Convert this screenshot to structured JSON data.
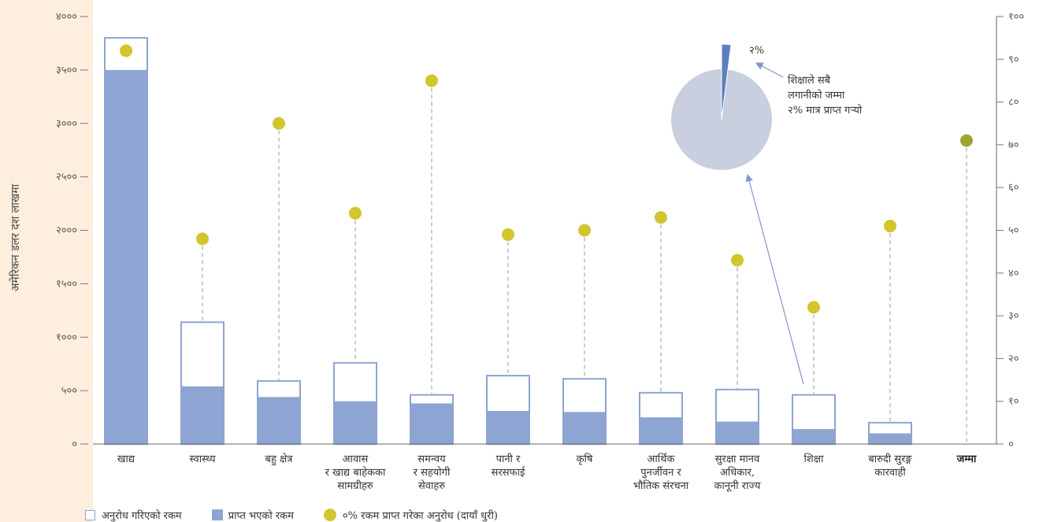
{
  "chart_data": {
    "type": "bar",
    "ylabel": "अमेरिकन डलर दश लाखमा",
    "ylim": [
      0,
      4000
    ],
    "y2lim": [
      0,
      100
    ],
    "yticks": [
      "०",
      "५००",
      "१०००",
      "१५००",
      "२०००",
      "२५००",
      "३०००",
      "३५००",
      "४०००"
    ],
    "y2ticks": [
      "०",
      "१०",
      "२०",
      "३०",
      "४०",
      "५०",
      "६०",
      "७०",
      "८०",
      "९०",
      "१००"
    ],
    "categories": [
      [
        "खाद्य"
      ],
      [
        "स्वास्थ्य"
      ],
      [
        "बहु क्षेत्र"
      ],
      [
        "आवास",
        "र खाद्य बाहेकका",
        "सामग्रीहरु"
      ],
      [
        "समन्वय",
        "र सहयोगी",
        "सेवाहरु"
      ],
      [
        "पानी र",
        "सरसफाई"
      ],
      [
        "कृषि"
      ],
      [
        "आर्थिक",
        "पुनर्जीवन र",
        "भौतिक संरचना"
      ],
      [
        "सुरक्षा मानव",
        "अधिकार,",
        "कानूनी राज्य"
      ],
      [
        "शिक्षा"
      ],
      [
        "बारुदी सुरङ्ग",
        "कारवाही"
      ],
      [
        "जम्मा"
      ]
    ],
    "series": [
      {
        "name": "अनुरोध गरिएको रकम",
        "values": [
          3800,
          1140,
          590,
          760,
          460,
          640,
          610,
          480,
          510,
          460,
          200,
          null
        ]
      },
      {
        "name": "प्राप्त भएको रकम",
        "values": [
          3500,
          540,
          440,
          400,
          380,
          310,
          300,
          250,
          210,
          140,
          100,
          null
        ]
      },
      {
        "name": "०% रकम प्राप्त गरेका अनुरोध (दायाँ धुरी)",
        "axis": "right",
        "values": [
          92,
          48,
          75,
          54,
          85,
          49,
          50,
          53,
          43,
          32,
          51,
          71
        ]
      }
    ],
    "pie": {
      "values": [
        98,
        2
      ],
      "label": "२%",
      "annotation": [
        "शिक्षाले सबै",
        "लगानीको जम्मा",
        "२% मात्र प्राप्त गऱ्यो"
      ]
    },
    "legend": [
      "अनुरोध गरिएको रकम",
      "प्राप्त भएको रकम",
      "०% रकम प्राप्त गरेका अनुरोध (दायाँ धुरी)"
    ],
    "colors": {
      "received": "#8ea4d2",
      "requested_border": "#8ea4d2",
      "dot": "#d2c52e",
      "dot_total": "#a2a534",
      "pie_main": "#c9cfdf",
      "pie_slice": "#5b7fc0",
      "band": "#fdeede"
    }
  }
}
